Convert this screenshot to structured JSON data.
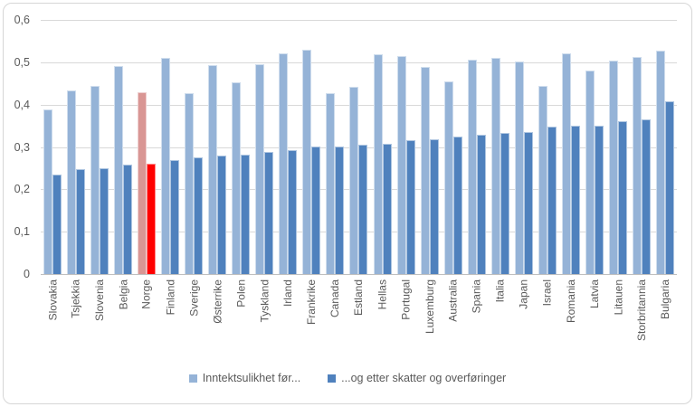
{
  "chart_data": {
    "type": "bar",
    "orientation": "vertical",
    "title": "",
    "xlabel": "",
    "ylabel": "",
    "ylim": [
      0,
      0.6
    ],
    "y_ticks": [
      "0,6",
      "0,5",
      "0,4",
      "0,3",
      "0,2",
      "0,1",
      "0"
    ],
    "grid": true,
    "legend_position": "bottom",
    "categories": [
      "Slovakia",
      "Tsjekkia",
      "Slovenia",
      "Belgia",
      "Norge",
      "Finland",
      "Sverige",
      "Østerrike",
      "Polen",
      "Tyskland",
      "Irland",
      "Frankrike",
      "Canada",
      "Estland",
      "Hellas",
      "Portugal",
      "Luxemburg",
      "Australia",
      "Spania",
      "Italia",
      "Japan",
      "Israel",
      "Romania",
      "Latvia",
      "Litauen",
      "Storbritannia",
      "Bulgaria"
    ],
    "series": [
      {
        "name": "Inntektsulikhet før...",
        "color": "#95b3d7",
        "values": [
          0.388,
          0.433,
          0.444,
          0.491,
          0.429,
          0.51,
          0.428,
          0.494,
          0.452,
          0.495,
          0.521,
          0.529,
          0.428,
          0.441,
          0.518,
          0.514,
          0.489,
          0.455,
          0.506,
          0.51,
          0.501,
          0.445,
          0.521,
          0.48,
          0.503,
          0.513,
          0.527
        ]
      },
      {
        "name": "...og etter skatter og overføringer",
        "color": "#4f81bd",
        "values": [
          0.235,
          0.248,
          0.25,
          0.258,
          0.261,
          0.268,
          0.275,
          0.28,
          0.282,
          0.289,
          0.293,
          0.3,
          0.302,
          0.305,
          0.307,
          0.316,
          0.318,
          0.325,
          0.329,
          0.333,
          0.336,
          0.348,
          0.35,
          0.351,
          0.361,
          0.366,
          0.408
        ]
      }
    ],
    "highlight": {
      "category": "Norge",
      "index": 4,
      "series_colors": [
        "#d99694",
        "#ff0000"
      ]
    }
  },
  "styles": {
    "background": "#ffffff",
    "frame_border_color": "#d6d6d6",
    "gridline_color": "#d9d9d9",
    "axis_line_color": "#bfbfbf",
    "text_color": "#595959"
  }
}
